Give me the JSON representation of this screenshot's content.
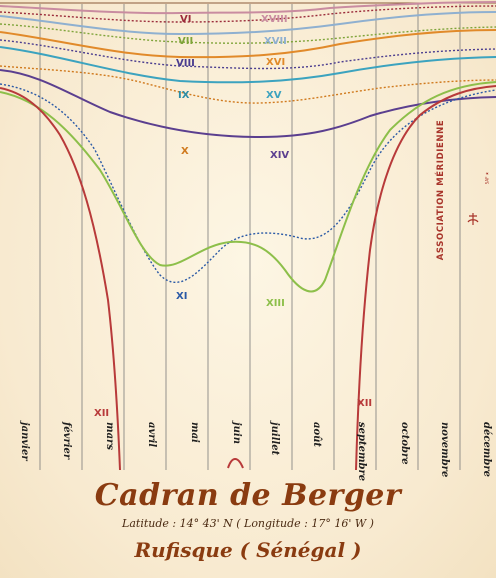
{
  "months": [
    "janvier",
    "février",
    "mars",
    "avril",
    "mai",
    "juin",
    "juillet",
    "août",
    "septembre",
    "octobre",
    "novembre",
    "décembre"
  ],
  "hours": {
    "VI": "VI",
    "VII": "VII",
    "VIII": "VIII",
    "IX": "IX",
    "X": "X",
    "XI": "XI",
    "XII_left": "XII",
    "XII_right": "XII",
    "XIII": "XIII",
    "XIV": "XIV",
    "XV": "XV",
    "XVI": "XVI",
    "XVII": "XVII",
    "XVIII": "XVIII"
  },
  "title": "Cadran de Berger",
  "coordinates": "Latitude : 14° 43' N  ( Longitude : 17° 16' W )",
  "place": "Rufisque ( Sénégal )",
  "brand": "ASSOCIATION  MÉRIDIENNE",
  "brand_small": "SAF ★",
  "colors": {
    "VI": "#9b2c3b",
    "VII": "#7fa43a",
    "VIII": "#4b3d8f",
    "IX": "#2d8fa8",
    "X": "#d07a1e",
    "XI": "#2b5aa6",
    "XII": "#b83a3a",
    "XIII": "#8dbf4a",
    "XIV": "#5b3f8f",
    "XV": "#3ca3bf",
    "XVI": "#e18a2a",
    "XVII": "#8fb0d0",
    "XVIII": "#c98ca0",
    "title": "#8a3b10"
  }
}
